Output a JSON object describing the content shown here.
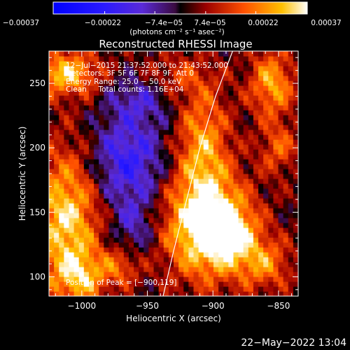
{
  "chart_data": {
    "type": "heatmap",
    "title": "Reconstructed RHESSI Image",
    "xlabel": "Heliocentric X (arcsec)",
    "ylabel": "Heliocentric Y (arcsec)",
    "xlim": [
      -1025,
      -835
    ],
    "ylim": [
      85,
      275
    ],
    "x_ticks": [
      -1000,
      -950,
      -900,
      -850
    ],
    "x_tick_labels": [
      "−1000",
      "−950",
      "−900",
      "−850"
    ],
    "y_ticks": [
      100,
      150,
      200,
      250
    ],
    "y_tick_labels": [
      "100",
      "150",
      "200",
      "250"
    ],
    "colorbar": {
      "range": [
        -0.00037,
        0.00037
      ],
      "ticks": [
        -0.00037,
        -0.00022,
        -7.4e-05,
        7.4e-05,
        0.00022,
        0.00037
      ],
      "tick_labels": [
        "−0.00037",
        "−0.00022",
        "−7.4e−05",
        "7.4e−05",
        "0.00022",
        "0.00037"
      ],
      "unit_label": "(photons cm⁻² s⁻¹ asec⁻²)"
    },
    "info_lines": [
      "12−Jul−2015 21:37:52.000 to 21:43:52.000",
      "Detectors: 3F 5F 6F 7F 8F 9F, Att 0",
      "Energy Range: 25.0 − 50.0 keV",
      "Clean     Total counts: 1.16E+04"
    ],
    "peak_label": "Position of Peak = [−900,119]",
    "peak": [
      -900,
      119
    ],
    "limb": [
      [
        -938,
        85
      ],
      [
        -930,
        120
      ],
      [
        -920,
        160
      ],
      [
        -910,
        200
      ],
      [
        -898,
        240
      ],
      [
        -885,
        275
      ]
    ],
    "sources": [
      {
        "x": -905,
        "y": 140,
        "sx": 22,
        "sy": 28,
        "amp": 0.0004
      },
      {
        "x": -885,
        "y": 132,
        "sx": 14,
        "sy": 16,
        "amp": 0.00018
      },
      {
        "x": -908,
        "y": 205,
        "sx": 14,
        "sy": 30,
        "amp": 0.00022
      },
      {
        "x": -1012,
        "y": 145,
        "sx": 18,
        "sy": 38,
        "amp": 0.0003
      },
      {
        "x": -1000,
        "y": 100,
        "sx": 14,
        "sy": 14,
        "amp": 0.0002
      },
      {
        "x": -1012,
        "y": 258,
        "sx": 18,
        "sy": 12,
        "amp": 0.00028
      },
      {
        "x": -970,
        "y": 108,
        "sx": 10,
        "sy": 10,
        "amp": 0.00015
      },
      {
        "x": -930,
        "y": 255,
        "sx": 20,
        "sy": 12,
        "amp": 0.00012
      },
      {
        "x": -855,
        "y": 250,
        "sx": 12,
        "sy": 18,
        "amp": 0.00024
      },
      {
        "x": -850,
        "y": 200,
        "sx": 10,
        "sy": 14,
        "amp": 0.00015
      },
      {
        "x": -860,
        "y": 110,
        "sx": 14,
        "sy": 14,
        "amp": 0.00018
      },
      {
        "x": -965,
        "y": 190,
        "sx": 20,
        "sy": 24,
        "amp": -0.00022
      },
      {
        "x": -955,
        "y": 240,
        "sx": 18,
        "sy": 14,
        "amp": -0.00014
      },
      {
        "x": -960,
        "y": 140,
        "sx": 12,
        "sy": 16,
        "amp": -0.00012
      }
    ]
  },
  "footer": {
    "timestamp": "22−May−2022 13:04"
  }
}
